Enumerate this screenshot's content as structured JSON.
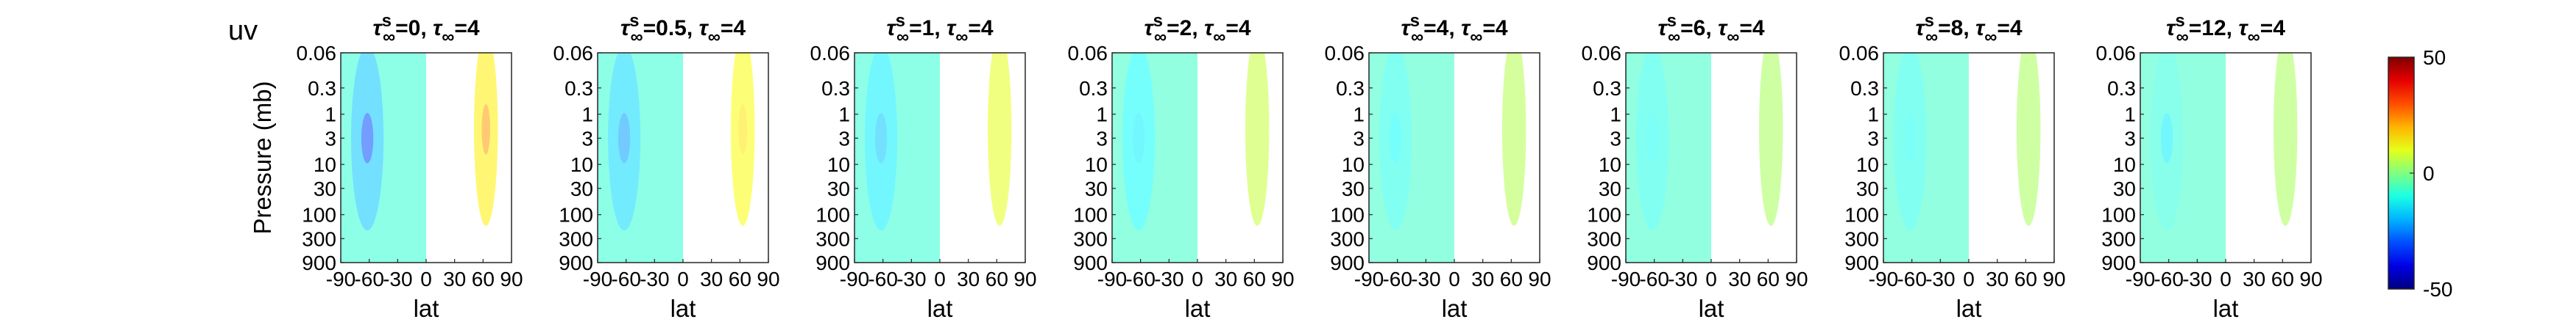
{
  "figure_label": "uv",
  "chart_data": {
    "type": "heatmap",
    "shared": {
      "xlabel": "lat",
      "ylabel": "Pressure (mb)",
      "x_ticks": [
        -90,
        -60,
        -30,
        0,
        30,
        60,
        90
      ],
      "x_tick_labels": [
        "-90",
        "-60",
        "-30",
        "0",
        "30",
        "60",
        "90"
      ],
      "y_ticks": [
        0.06,
        0.3,
        1,
        3,
        10,
        30,
        100,
        300,
        900
      ],
      "y_tick_labels": [
        "0.06",
        "0.3",
        "1",
        "3",
        "10",
        "30",
        "100",
        "300",
        "900"
      ],
      "xlim": [
        -90,
        90
      ],
      "ylim": [
        900,
        0.06
      ],
      "y_scale": "log",
      "y_reversed": true
    },
    "colorbar": {
      "range": [
        -50,
        50
      ],
      "ticks": [
        50,
        0,
        -50
      ],
      "tick_labels": [
        "50",
        "0",
        "-50"
      ],
      "colormap": "jet"
    },
    "panels": [
      {
        "tau_s": "0",
        "tau": "4",
        "sh_fill": -8,
        "south_jet": -18,
        "core": -30,
        "north_jet": 14,
        "north_core": 22
      },
      {
        "tau_s": "0.5",
        "tau": "4",
        "sh_fill": -8,
        "south_jet": -16,
        "core": -22,
        "north_jet": 12,
        "north_core": 15
      },
      {
        "tau_s": "1",
        "tau": "4",
        "sh_fill": -8,
        "south_jet": -14,
        "core": -18,
        "north_jet": 10,
        "north_core": 10
      },
      {
        "tau_s": "2",
        "tau": "4",
        "sh_fill": -7,
        "south_jet": -12,
        "core": -14,
        "north_jet": 7,
        "north_core": 7
      },
      {
        "tau_s": "4",
        "tau": "4",
        "sh_fill": -7,
        "south_jet": -10,
        "core": -12,
        "north_jet": 5,
        "north_core": 5
      },
      {
        "tau_s": "6",
        "tau": "4",
        "sh_fill": -7,
        "south_jet": -10,
        "core": -11,
        "north_jet": 4,
        "north_core": 4
      },
      {
        "tau_s": "8",
        "tau": "4",
        "sh_fill": -7,
        "south_jet": -10,
        "core": -11,
        "north_jet": 4,
        "north_core": 4
      },
      {
        "tau_s": "12",
        "tau": "4",
        "sh_fill": -7,
        "south_jet": -9,
        "core": -14,
        "north_jet": 4,
        "north_core": 4
      }
    ]
  }
}
